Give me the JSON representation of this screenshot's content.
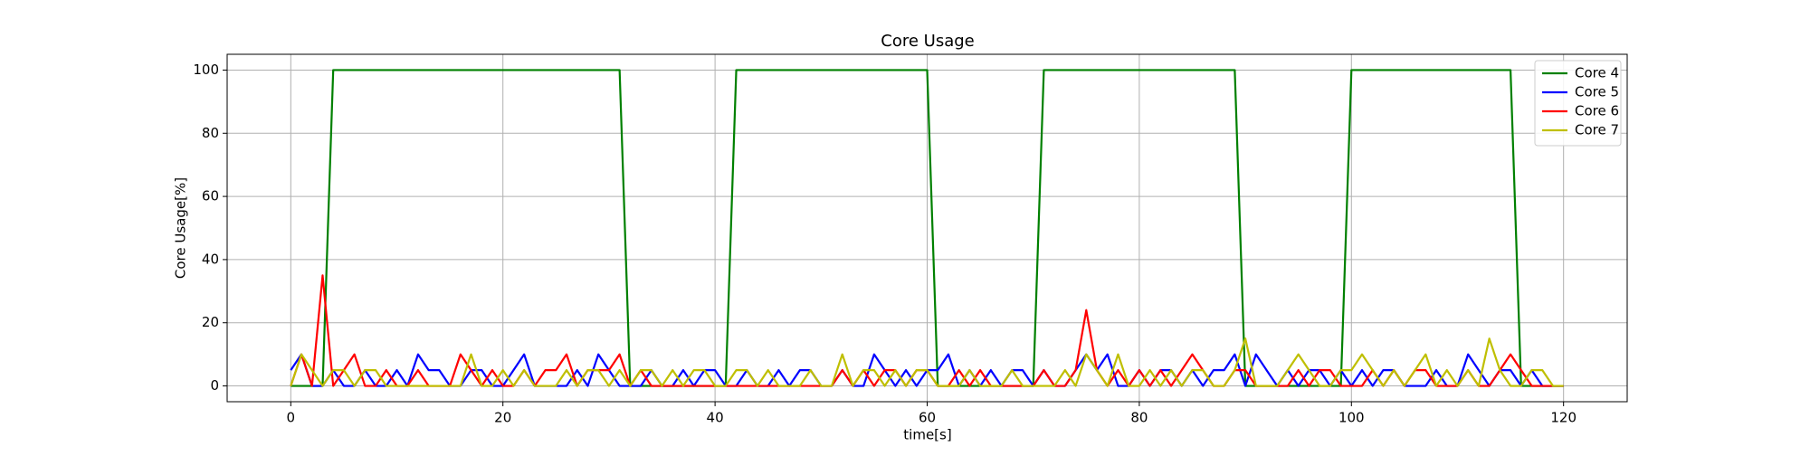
{
  "chart_data": {
    "type": "line",
    "title": "Core Usage",
    "x_label": "time[s]",
    "y_label": "Core Usage[%]",
    "x": [
      0,
      1,
      2,
      3,
      4,
      5,
      6,
      7,
      8,
      9,
      10,
      11,
      12,
      13,
      14,
      15,
      16,
      17,
      18,
      19,
      20,
      21,
      22,
      23,
      24,
      25,
      26,
      27,
      28,
      29,
      30,
      31,
      32,
      33,
      34,
      35,
      36,
      37,
      38,
      39,
      40,
      41,
      42,
      43,
      44,
      45,
      46,
      47,
      48,
      49,
      50,
      51,
      52,
      53,
      54,
      55,
      56,
      57,
      58,
      59,
      60,
      61,
      62,
      63,
      64,
      65,
      66,
      67,
      68,
      69,
      70,
      71,
      72,
      73,
      74,
      75,
      76,
      77,
      78,
      79,
      80,
      81,
      82,
      83,
      84,
      85,
      86,
      87,
      88,
      89,
      90,
      91,
      92,
      93,
      94,
      95,
      96,
      97,
      98,
      99,
      100,
      101,
      102,
      103,
      104,
      105,
      106,
      107,
      108,
      109,
      110,
      111,
      112,
      113,
      114,
      115,
      116,
      117,
      118,
      119,
      120
    ],
    "series": [
      {
        "name": "Core 4",
        "color": "#008000",
        "values": [
          0,
          0,
          0,
          0,
          100,
          100,
          100,
          100,
          100,
          100,
          100,
          100,
          100,
          100,
          100,
          100,
          100,
          100,
          100,
          100,
          100,
          100,
          100,
          100,
          100,
          100,
          100,
          100,
          100,
          100,
          100,
          100,
          0,
          0,
          0,
          0,
          0,
          0,
          0,
          0,
          0,
          0,
          100,
          100,
          100,
          100,
          100,
          100,
          100,
          100,
          100,
          100,
          100,
          100,
          100,
          100,
          100,
          100,
          100,
          100,
          100,
          0,
          0,
          0,
          0,
          0,
          0,
          0,
          0,
          0,
          0,
          100,
          100,
          100,
          100,
          100,
          100,
          100,
          100,
          100,
          100,
          100,
          100,
          100,
          100,
          100,
          100,
          100,
          100,
          100,
          0,
          0,
          0,
          0,
          0,
          0,
          0,
          0,
          0,
          0,
          100,
          100,
          100,
          100,
          100,
          100,
          100,
          100,
          100,
          100,
          100,
          100,
          100,
          100,
          100,
          100,
          0,
          0,
          0,
          0,
          0
        ]
      },
      {
        "name": "Core 5",
        "color": "#0000ff",
        "values": [
          5,
          10,
          0,
          0,
          5,
          0,
          0,
          5,
          0,
          0,
          5,
          0,
          10,
          5,
          5,
          0,
          0,
          5,
          5,
          0,
          0,
          5,
          10,
          0,
          0,
          0,
          0,
          5,
          0,
          10,
          5,
          0,
          0,
          0,
          5,
          0,
          0,
          5,
          0,
          5,
          5,
          0,
          0,
          5,
          0,
          0,
          5,
          0,
          5,
          5,
          0,
          0,
          5,
          0,
          0,
          10,
          5,
          0,
          5,
          0,
          5,
          5,
          10,
          0,
          5,
          0,
          5,
          0,
          5,
          5,
          0,
          5,
          0,
          0,
          5,
          10,
          5,
          10,
          0,
          0,
          5,
          0,
          5,
          5,
          0,
          5,
          0,
          5,
          5,
          10,
          0,
          10,
          5,
          0,
          5,
          0,
          5,
          5,
          0,
          5,
          0,
          5,
          0,
          5,
          5,
          0,
          0,
          0,
          5,
          0,
          0,
          10,
          5,
          0,
          5,
          5,
          0,
          5,
          0,
          0,
          0
        ]
      },
      {
        "name": "Core 6",
        "color": "#ff0000",
        "values": [
          0,
          10,
          0,
          35,
          0,
          5,
          10,
          0,
          0,
          5,
          0,
          0,
          5,
          0,
          0,
          0,
          10,
          5,
          0,
          5,
          0,
          0,
          5,
          0,
          5,
          5,
          10,
          0,
          5,
          5,
          5,
          10,
          0,
          5,
          0,
          0,
          0,
          0,
          0,
          0,
          0,
          0,
          0,
          0,
          0,
          0,
          0,
          0,
          0,
          0,
          0,
          0,
          5,
          0,
          5,
          0,
          5,
          5,
          0,
          5,
          5,
          0,
          0,
          5,
          0,
          5,
          0,
          0,
          0,
          0,
          0,
          5,
          0,
          0,
          5,
          24,
          5,
          0,
          5,
          0,
          5,
          0,
          5,
          0,
          5,
          10,
          5,
          0,
          0,
          5,
          5,
          0,
          0,
          0,
          0,
          5,
          0,
          5,
          5,
          0,
          0,
          0,
          5,
          0,
          5,
          0,
          5,
          5,
          0,
          0,
          0,
          5,
          0,
          0,
          5,
          10,
          5,
          0,
          0,
          0,
          0
        ]
      },
      {
        "name": "Core 7",
        "color": "#bfbf00",
        "values": [
          0,
          10,
          5,
          0,
          5,
          5,
          0,
          5,
          5,
          0,
          0,
          0,
          0,
          0,
          0,
          0,
          0,
          10,
          0,
          0,
          5,
          0,
          5,
          0,
          0,
          0,
          5,
          0,
          5,
          5,
          0,
          5,
          0,
          5,
          5,
          0,
          5,
          0,
          5,
          5,
          0,
          0,
          5,
          5,
          0,
          5,
          0,
          0,
          0,
          5,
          0,
          0,
          10,
          0,
          5,
          5,
          0,
          5,
          0,
          5,
          5,
          0,
          0,
          0,
          5,
          0,
          0,
          0,
          5,
          0,
          0,
          0,
          0,
          5,
          0,
          10,
          5,
          0,
          10,
          0,
          0,
          5,
          0,
          5,
          0,
          5,
          5,
          0,
          0,
          5,
          15,
          0,
          0,
          0,
          5,
          10,
          5,
          0,
          0,
          5,
          5,
          10,
          5,
          0,
          5,
          0,
          5,
          10,
          0,
          5,
          0,
          5,
          0,
          15,
          5,
          0,
          0,
          5,
          5,
          0,
          0
        ]
      }
    ],
    "xlim": [
      -6,
      126
    ],
    "ylim": [
      -5,
      105
    ],
    "xticks": [
      0,
      20,
      40,
      60,
      80,
      100,
      120
    ],
    "yticks": [
      0,
      20,
      40,
      60,
      80,
      100
    ],
    "grid": true,
    "legend": "upper right"
  }
}
